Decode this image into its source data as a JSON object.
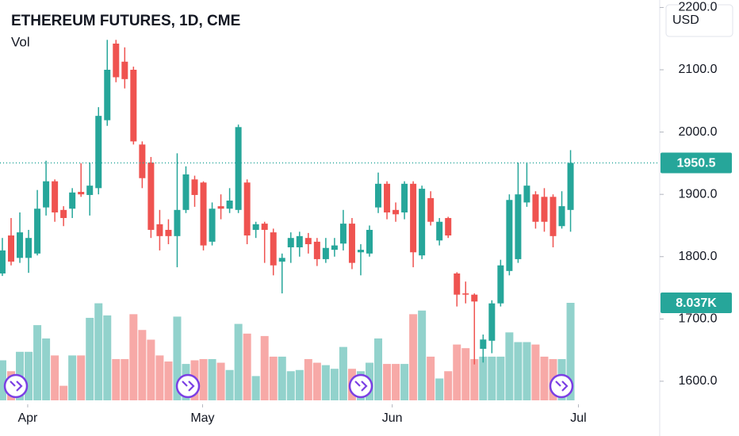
{
  "chart_data": {
    "type": "candlestick",
    "title": "ETHEREUM FUTURES, 1D, CME",
    "currency": "USD",
    "up_color": "#26a69a",
    "down_color": "#ef5350",
    "open": [
      1773,
      1834,
      1798,
      1798,
      1805,
      1879,
      1921,
      1875,
      1877,
      1904,
      1899,
      1910,
      2019,
      2142,
      2113,
      2100,
      1980,
      1951,
      1852,
      1843,
      1833,
      1875,
      1924,
      1919,
      1824,
      1881,
      1877,
      1875,
      1919,
      1843,
      1853,
      1839,
      1792,
      1815,
      1815,
      1830,
      1824,
      1796,
      1811,
      1821,
      1853,
      1807,
      1805,
      1879,
      1917,
      1875,
      1871,
      1917,
      1802,
      1894,
      1826,
      1862,
      1773,
      1741,
      1739,
      1652,
      1665,
      1725,
      1777,
      1796,
      1887,
      1900,
      1896,
      1896,
      1849,
      1875
    ],
    "high": [
      1830,
      1862,
      1871,
      1843,
      1907,
      1954,
      1924,
      1881,
      1910,
      1950,
      1951,
      2040,
      2148,
      2148,
      2136,
      2105,
      1985,
      1960,
      1875,
      1860,
      1966,
      1945,
      1930,
      1921,
      1887,
      1900,
      1910,
      2012,
      1924,
      1856,
      1856,
      1845,
      1805,
      1839,
      1840,
      1838,
      1830,
      1830,
      1830,
      1875,
      1862,
      1820,
      1850,
      1935,
      1921,
      1887,
      1921,
      1921,
      1914,
      1905,
      1862,
      1864,
      1775,
      1760,
      1741,
      1675,
      1730,
      1795,
      1900,
      1951,
      1951,
      1905,
      1910,
      1900,
      1905,
      1971
    ],
    "low": [
      1769,
      1786,
      1790,
      1774,
      1802,
      1866,
      1856,
      1849,
      1862,
      1896,
      1866,
      1900,
      2010,
      2080,
      2070,
      1980,
      1910,
      1830,
      1810,
      1820,
      1783,
      1870,
      1880,
      1810,
      1818,
      1860,
      1870,
      1870,
      1820,
      1830,
      1790,
      1770,
      1741,
      1790,
      1800,
      1805,
      1785,
      1790,
      1800,
      1810,
      1780,
      1770,
      1800,
      1870,
      1860,
      1856,
      1860,
      1783,
      1796,
      1850,
      1818,
      1830,
      1720,
      1725,
      1627,
      1630,
      1645,
      1720,
      1770,
      1790,
      1880,
      1845,
      1840,
      1815,
      1845,
      1840
    ],
    "close": [
      1810,
      1792,
      1839,
      1830,
      1877,
      1921,
      1871,
      1862,
      1903,
      1900,
      1914,
      2026,
      2100,
      2088,
      2085,
      1985,
      1926,
      1843,
      1833,
      1833,
      1875,
      1932,
      1899,
      1818,
      1877,
      1877,
      1890,
      2008,
      1834,
      1852,
      1843,
      1786,
      1798,
      1830,
      1833,
      1820,
      1796,
      1814,
      1818,
      1853,
      1790,
      1811,
      1843,
      1917,
      1871,
      1868,
      1917,
      1807,
      1909,
      1856,
      1856,
      1834,
      1739,
      1739,
      1728,
      1667,
      1725,
      1786,
      1891,
      1900,
      1914,
      1856,
      1856,
      1833,
      1881,
      1950.5
    ],
    "volume": {
      "name": "Vol",
      "values": [
        3.3,
        2.4,
        4.0,
        4.0,
        6.2,
        5.1,
        3.7,
        1.2,
        3.7,
        3.7,
        6.8,
        8.0,
        7.0,
        3.4,
        3.4,
        7.1,
        5.8,
        5.0,
        3.7,
        3.2,
        6.9,
        3.0,
        3.3,
        3.4,
        3.4,
        3.1,
        2.5,
        6.3,
        5.5,
        2.0,
        5.3,
        3.6,
        3.6,
        2.4,
        2.5,
        3.4,
        3.1,
        2.9,
        2.6,
        4.4,
        2.6,
        2.4,
        3.1,
        5.1,
        3.0,
        3.0,
        3.0,
        7.1,
        7.4,
        3.6,
        1.8,
        2.4,
        4.6,
        4.3,
        3.4,
        3.6,
        3.6,
        3.6,
        5.6,
        4.8,
        4.8,
        4.6,
        3.6,
        3.4,
        3.4,
        8.037
      ],
      "last_label": "8.037K",
      "vlim": [
        0,
        33
      ]
    },
    "xlim": [
      -0.27,
      75.2
    ],
    "xticks": [
      {
        "value": 2.9,
        "label": "Apr"
      },
      {
        "value": 22.9,
        "label": "May"
      },
      {
        "value": 44.6,
        "label": "Jun"
      },
      {
        "value": 65.9,
        "label": "Jul"
      }
    ],
    "ylim": [
      1563,
      2212
    ],
    "yticks": [
      {
        "value": 1600,
        "label": "1600.0"
      },
      {
        "value": 1700,
        "label": "1700.0"
      },
      {
        "value": 1800,
        "label": "1800.0"
      },
      {
        "value": 1900,
        "label": "1900.0"
      },
      {
        "value": 2000,
        "label": "2000.0"
      },
      {
        "value": 2100,
        "label": "2100.0"
      },
      {
        "value": 2200,
        "label": "2200.0"
      }
    ]
  }
}
